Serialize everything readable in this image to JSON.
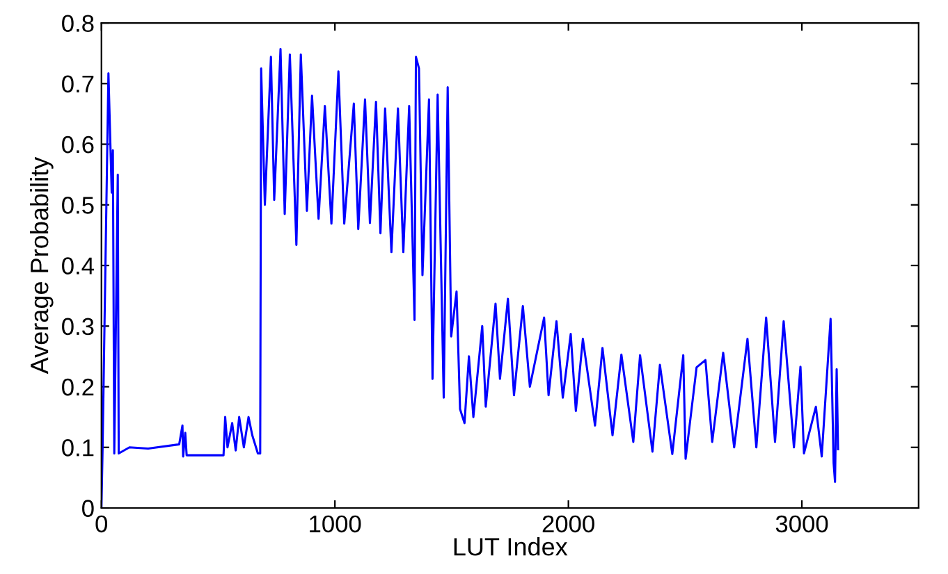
{
  "chart_data": {
    "type": "line",
    "xlabel": "LUT Index",
    "ylabel": "Average Probability",
    "xlim": [
      0,
      3500
    ],
    "ylim": [
      0,
      0.8
    ],
    "xticks": [
      0,
      1000,
      2000,
      3000
    ],
    "yticks": [
      0,
      0.1,
      0.2,
      0.3,
      0.4,
      0.5,
      0.6,
      0.7,
      0.8
    ],
    "grid": false,
    "marker": "none",
    "line_style": "solid",
    "series": [
      {
        "color": "#0000ff",
        "x": [
          0,
          5,
          30,
          44,
          49,
          55,
          70,
          74,
          120,
          200,
          333,
          347,
          350,
          359,
          365,
          523,
          530,
          540,
          560,
          575,
          590,
          610,
          630,
          646,
          670,
          680,
          684,
          700,
          726,
          740,
          767,
          785,
          807,
          835,
          854,
          880,
          902,
          930,
          957,
          985,
          1015,
          1040,
          1081,
          1100,
          1129,
          1150,
          1176,
          1195,
          1215,
          1242,
          1270,
          1293,
          1318,
          1341,
          1347,
          1360,
          1375,
          1403,
          1418,
          1440,
          1466,
          1483,
          1498,
          1521,
          1536,
          1555,
          1574,
          1593,
          1631,
          1646,
          1688,
          1707,
          1741,
          1767,
          1805,
          1835,
          1896,
          1915,
          1949,
          1976,
          2010,
          2032,
          2062,
          2114,
          2146,
          2189,
          2227,
          2278,
          2307,
          2360,
          2392,
          2445,
          2492,
          2502,
          2549,
          2587,
          2616,
          2663,
          2710,
          2767,
          2805,
          2847,
          2885,
          2922,
          2966,
          2994,
          3009,
          3060,
          3085,
          3123,
          3136,
          3142,
          3149,
          3155
        ],
        "values": [
          0.0,
          0.1,
          0.717,
          0.52,
          0.59,
          0.09,
          0.55,
          0.09,
          0.1,
          0.098,
          0.105,
          0.136,
          0.085,
          0.124,
          0.087,
          0.087,
          0.15,
          0.1,
          0.14,
          0.095,
          0.15,
          0.1,
          0.15,
          0.12,
          0.09,
          0.09,
          0.725,
          0.5,
          0.744,
          0.508,
          0.757,
          0.485,
          0.748,
          0.434,
          0.748,
          0.49,
          0.68,
          0.477,
          0.663,
          0.469,
          0.72,
          0.469,
          0.667,
          0.46,
          0.674,
          0.47,
          0.67,
          0.453,
          0.659,
          0.422,
          0.659,
          0.422,
          0.663,
          0.31,
          0.744,
          0.725,
          0.384,
          0.674,
          0.213,
          0.682,
          0.182,
          0.694,
          0.283,
          0.357,
          0.163,
          0.14,
          0.25,
          0.15,
          0.3,
          0.167,
          0.337,
          0.213,
          0.345,
          0.186,
          0.333,
          0.2,
          0.314,
          0.186,
          0.308,
          0.182,
          0.287,
          0.16,
          0.279,
          0.136,
          0.264,
          0.12,
          0.253,
          0.109,
          0.252,
          0.093,
          0.236,
          0.089,
          0.252,
          0.081,
          0.232,
          0.244,
          0.109,
          0.256,
          0.1,
          0.279,
          0.1,
          0.314,
          0.109,
          0.308,
          0.1,
          0.233,
          0.09,
          0.167,
          0.085,
          0.312,
          0.074,
          0.043,
          0.229,
          0.097
        ]
      }
    ]
  }
}
